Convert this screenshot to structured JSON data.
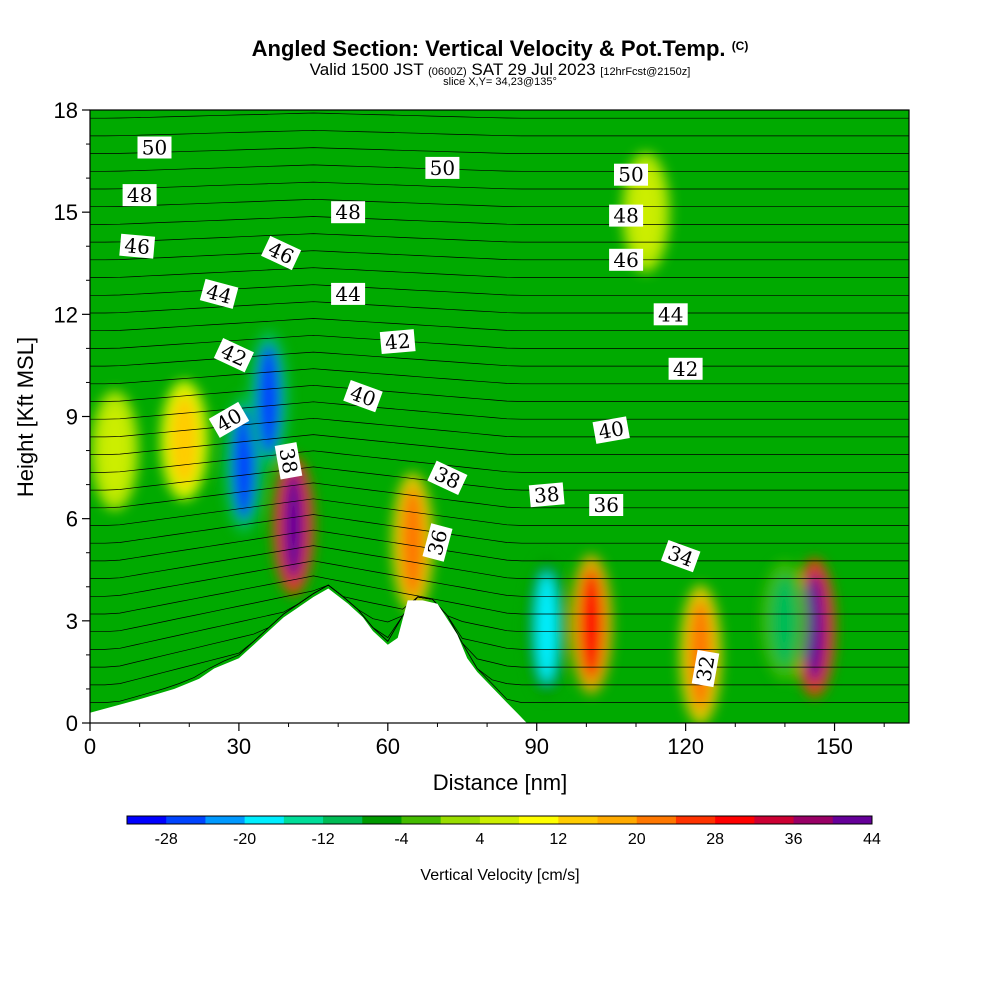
{
  "title": {
    "main": "Angled Section: Vertical Velocity & Pot.Temp.",
    "copyright": "(C)",
    "valid_prefix": "Valid 1500 JST",
    "valid_utc": "(0600Z)",
    "valid_date": "SAT 29 Jul 2023",
    "forecast": "[12hrFcst@2150z]",
    "slice": "slice X,Y= 34,23@135°"
  },
  "colors": {
    "terrain": "#ffffff",
    "contour_line": "#000000",
    "background": "#00aa00"
  },
  "chart_data": {
    "type": "heatmap",
    "xlabel": "Distance [nm]",
    "ylabel": "Height [Kft MSL]",
    "xlim": [
      0,
      165
    ],
    "ylim": [
      0,
      18
    ],
    "x_ticks": [
      0,
      30,
      60,
      90,
      120,
      150
    ],
    "y_ticks": [
      0,
      3,
      6,
      9,
      12,
      15,
      18
    ],
    "colorbar": {
      "label": "Vertical Velocity [cm/s]",
      "tick_labels": [
        -28,
        -20,
        -12,
        -4,
        4,
        12,
        20,
        28,
        36,
        44
      ],
      "colors": [
        "#0000ff",
        "#0044ff",
        "#0099ff",
        "#00eeff",
        "#00dd99",
        "#00bb55",
        "#009900",
        "#44bb00",
        "#99dd00",
        "#ccee00",
        "#ffff00",
        "#ffcc00",
        "#ffaa00",
        "#ff7700",
        "#ff3300",
        "#ff0000",
        "#cc0033",
        "#990066",
        "#660099"
      ]
    },
    "terrain_profile": {
      "x": [
        0,
        10,
        17,
        22,
        25,
        30,
        33,
        36,
        39,
        42,
        45,
        48,
        52,
        55,
        57,
        60,
        62,
        64,
        67,
        70,
        74,
        76,
        78,
        80,
        82,
        84,
        86,
        88,
        165
      ],
      "height": [
        0.3,
        0.7,
        1.0,
        1.3,
        1.6,
        1.9,
        2.3,
        2.7,
        3.1,
        3.4,
        3.7,
        3.95,
        3.5,
        3.1,
        2.7,
        2.3,
        2.5,
        3.6,
        3.6,
        3.5,
        2.6,
        1.9,
        1.5,
        1.2,
        0.9,
        0.6,
        0.3,
        0.0,
        0.0
      ]
    },
    "velocity_cells": [
      {
        "x": 31,
        "y": 7.6,
        "value": -28
      },
      {
        "x": 36,
        "y": 9.5,
        "value": -28
      },
      {
        "x": 41,
        "y": 5.8,
        "value": 44
      },
      {
        "x": 19,
        "y": 8.3,
        "value": 12
      },
      {
        "x": 65,
        "y": 5.3,
        "value": 20
      },
      {
        "x": 92,
        "y": 2.8,
        "value": -20
      },
      {
        "x": 101,
        "y": 2.9,
        "value": 28
      },
      {
        "x": 123,
        "y": 2.0,
        "value": 20
      },
      {
        "x": 146,
        "y": 2.8,
        "value": 44
      },
      {
        "x": 140,
        "y": 3.0,
        "value": -12
      },
      {
        "x": 112,
        "y": 15.0,
        "value": 4
      },
      {
        "x": 5,
        "y": 8.0,
        "value": 4
      }
    ],
    "theta_labels": [
      {
        "text": "50",
        "x": 13,
        "y": 16.9,
        "angle": 0
      },
      {
        "text": "48",
        "x": 10,
        "y": 15.5,
        "angle": 0
      },
      {
        "text": "46",
        "x": 9.5,
        "y": 14.0,
        "angle": 5
      },
      {
        "text": "44",
        "x": 26,
        "y": 12.6,
        "angle": 15
      },
      {
        "text": "42",
        "x": 29,
        "y": 10.8,
        "angle": 25
      },
      {
        "text": "40",
        "x": 28,
        "y": 8.9,
        "angle": -30
      },
      {
        "text": "46",
        "x": 38.5,
        "y": 13.8,
        "angle": 25
      },
      {
        "text": "38",
        "x": 40,
        "y": 7.7,
        "angle": 80
      },
      {
        "text": "48",
        "x": 52,
        "y": 15.0,
        "angle": 0
      },
      {
        "text": "44",
        "x": 52,
        "y": 12.6,
        "angle": 0
      },
      {
        "text": "42",
        "x": 62,
        "y": 11.2,
        "angle": -5
      },
      {
        "text": "40",
        "x": 55,
        "y": 9.6,
        "angle": 20
      },
      {
        "text": "50",
        "x": 71,
        "y": 16.3,
        "angle": 0
      },
      {
        "text": "38",
        "x": 72,
        "y": 7.2,
        "angle": 25
      },
      {
        "text": "36",
        "x": 70,
        "y": 5.3,
        "angle": -75
      },
      {
        "text": "38",
        "x": 92,
        "y": 6.7,
        "angle": -5
      },
      {
        "text": "36",
        "x": 104,
        "y": 6.4,
        "angle": 0
      },
      {
        "text": "34",
        "x": 119,
        "y": 4.9,
        "angle": 20
      },
      {
        "text": "40",
        "x": 105,
        "y": 8.6,
        "angle": -10
      },
      {
        "text": "50",
        "x": 109,
        "y": 16.1,
        "angle": 0
      },
      {
        "text": "48",
        "x": 108,
        "y": 14.9,
        "angle": 0
      },
      {
        "text": "46",
        "x": 108,
        "y": 13.6,
        "angle": 0
      },
      {
        "text": "44",
        "x": 117,
        "y": 12.0,
        "angle": 0
      },
      {
        "text": "42",
        "x": 120,
        "y": 10.4,
        "angle": 0
      },
      {
        "text": "32",
        "x": 124,
        "y": 1.6,
        "angle": -80
      }
    ]
  }
}
